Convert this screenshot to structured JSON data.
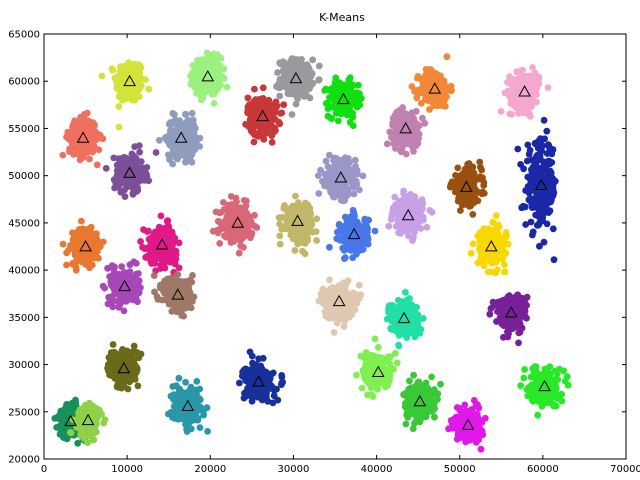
{
  "chart_data": {
    "type": "scatter",
    "title": "K-Means",
    "xlabel": "",
    "ylabel": "",
    "xlim": [
      0,
      70000
    ],
    "ylim": [
      20000,
      65000
    ],
    "xticks": [
      0,
      10000,
      20000,
      30000,
      40000,
      50000,
      60000,
      70000
    ],
    "yticks": [
      20000,
      25000,
      30000,
      35000,
      40000,
      45000,
      50000,
      55000,
      60000,
      65000
    ],
    "grid": false,
    "centroid_marker": "triangle",
    "clusters": [
      {
        "name": "c1",
        "color": "#d4e23a",
        "centroid": [
          10300,
          60000
        ],
        "spread": [
          1500,
          2100
        ]
      },
      {
        "name": "c2",
        "color": "#9cf080",
        "centroid": [
          19700,
          60500
        ],
        "spread": [
          1500,
          1800
        ]
      },
      {
        "name": "c3",
        "color": "#9a9a9e",
        "centroid": [
          30300,
          60300
        ],
        "spread": [
          1700,
          1800
        ]
      },
      {
        "name": "c4",
        "color": "#10e010",
        "centroid": [
          36000,
          58100
        ],
        "spread": [
          1600,
          1700
        ]
      },
      {
        "name": "c5",
        "color": "#f08838",
        "centroid": [
          47000,
          59200
        ],
        "spread": [
          1600,
          1800
        ]
      },
      {
        "name": "c6",
        "color": "#f4a8d0",
        "centroid": [
          57800,
          58900
        ],
        "spread": [
          1600,
          1800
        ]
      },
      {
        "name": "c7",
        "color": "#f07060",
        "centroid": [
          4700,
          54000
        ],
        "spread": [
          1500,
          1800
        ]
      },
      {
        "name": "c8",
        "color": "#8f9cbe",
        "centroid": [
          16500,
          54000
        ],
        "spread": [
          1600,
          1900
        ]
      },
      {
        "name": "c9",
        "color": "#c83838",
        "centroid": [
          26300,
          56300
        ],
        "spread": [
          1600,
          1900
        ]
      },
      {
        "name": "c10",
        "color": "#c080b0",
        "centroid": [
          43500,
          55000
        ],
        "spread": [
          1500,
          1700
        ]
      },
      {
        "name": "c11",
        "color": "#7c5098",
        "centroid": [
          10300,
          50300
        ],
        "spread": [
          1600,
          1800
        ]
      },
      {
        "name": "c12",
        "color": "#9a96c8",
        "centroid": [
          35700,
          49800
        ],
        "spread": [
          1600,
          1800
        ]
      },
      {
        "name": "c13",
        "color": "#9a5010",
        "centroid": [
          50800,
          48800
        ],
        "spread": [
          1600,
          1700
        ]
      },
      {
        "name": "c14",
        "color": "#1a28a8",
        "centroid": [
          59800,
          49000
        ],
        "spread": [
          1700,
          4200
        ]
      },
      {
        "name": "c15",
        "color": "#d86878",
        "centroid": [
          23300,
          45000
        ],
        "spread": [
          1600,
          1700
        ]
      },
      {
        "name": "c16",
        "color": "#c0b868",
        "centroid": [
          30500,
          45200
        ],
        "spread": [
          1600,
          1800
        ]
      },
      {
        "name": "c17",
        "color": "#4878e8",
        "centroid": [
          37300,
          43800
        ],
        "spread": [
          1500,
          1700
        ]
      },
      {
        "name": "c18",
        "color": "#c8a0e8",
        "centroid": [
          43800,
          45800
        ],
        "spread": [
          1600,
          1700
        ]
      },
      {
        "name": "c19",
        "color": "#e87830",
        "centroid": [
          5000,
          42500
        ],
        "spread": [
          1600,
          1800
        ]
      },
      {
        "name": "c20",
        "color": "#e01888",
        "centroid": [
          14200,
          42700
        ],
        "spread": [
          1600,
          1800
        ]
      },
      {
        "name": "c21",
        "color": "#f8d800",
        "centroid": [
          53800,
          42500
        ],
        "spread": [
          1500,
          1800
        ]
      },
      {
        "name": "c22",
        "color": "#a848b8",
        "centroid": [
          9700,
          38300
        ],
        "spread": [
          1500,
          1700
        ]
      },
      {
        "name": "c23",
        "color": "#a07868",
        "centroid": [
          16100,
          37400
        ],
        "spread": [
          1600,
          1700
        ]
      },
      {
        "name": "c24",
        "color": "#e0c8b0",
        "centroid": [
          35500,
          36700
        ],
        "spread": [
          1600,
          1700
        ]
      },
      {
        "name": "c25",
        "color": "#20e0a8",
        "centroid": [
          43300,
          34900
        ],
        "spread": [
          1600,
          1700
        ]
      },
      {
        "name": "c26",
        "color": "#782098",
        "centroid": [
          56200,
          35500
        ],
        "spread": [
          1600,
          1700
        ]
      },
      {
        "name": "c27",
        "color": "#6a6a18",
        "centroid": [
          9600,
          29600
        ],
        "spread": [
          1600,
          1800
        ]
      },
      {
        "name": "c28",
        "color": "#80f050",
        "centroid": [
          40200,
          29200
        ],
        "spread": [
          1600,
          1700
        ]
      },
      {
        "name": "c29",
        "color": "#18309a",
        "centroid": [
          25800,
          28200
        ],
        "spread": [
          1600,
          1700
        ]
      },
      {
        "name": "c30",
        "color": "#2898a8",
        "centroid": [
          17300,
          25600
        ],
        "spread": [
          1600,
          1700
        ]
      },
      {
        "name": "c31",
        "color": "#38c838",
        "centroid": [
          45200,
          26100
        ],
        "spread": [
          1600,
          1700
        ]
      },
      {
        "name": "c32",
        "color": "#28e828",
        "centroid": [
          60200,
          27700
        ],
        "spread": [
          1600,
          1700
        ]
      },
      {
        "name": "c33",
        "color": "#e018e8",
        "centroid": [
          51000,
          23600
        ],
        "spread": [
          1500,
          1500
        ]
      },
      {
        "name": "c34",
        "color": "#18905a",
        "centroid": [
          3200,
          24000
        ],
        "spread": [
          1300,
          1500
        ]
      },
      {
        "name": "c35",
        "color": "#90d048",
        "centroid": [
          5300,
          24100
        ],
        "spread": [
          1200,
          1500
        ]
      }
    ]
  }
}
